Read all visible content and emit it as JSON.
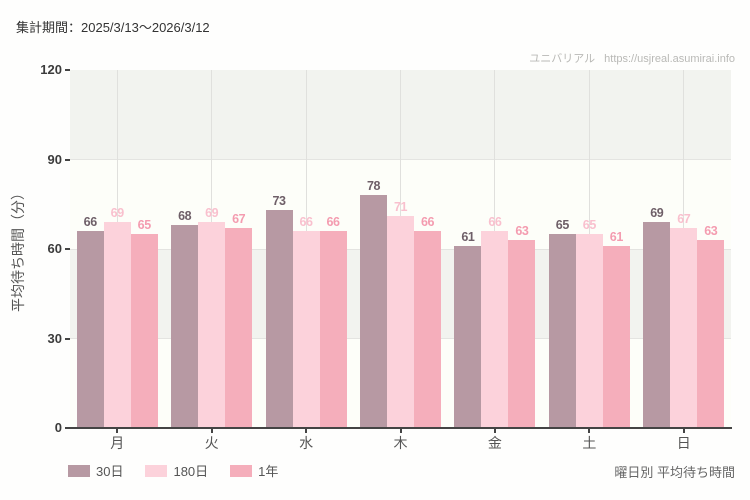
{
  "header": {
    "period_label": "集計期間：2025/3/13〜2026/3/12"
  },
  "watermark": {
    "brand": "ユニバリアル",
    "url": "https://usjreal.asumirai.info"
  },
  "chart_data": {
    "type": "bar",
    "title": "曜日別 平均待ち時間",
    "categories": [
      "月",
      "火",
      "水",
      "木",
      "金",
      "土",
      "日"
    ],
    "series": [
      {
        "name": "30日",
        "color": "#b799a3",
        "label_color": "#6e5f68",
        "values": [
          66,
          68,
          73,
          78,
          61,
          65,
          69
        ]
      },
      {
        "name": "180日",
        "color": "#fcd2db",
        "label_color": "#f9c0ce",
        "values": [
          69,
          69,
          66,
          71,
          66,
          65,
          67
        ]
      },
      {
        "name": "1年",
        "color": "#f5aebb",
        "label_color": "#f49cb0",
        "values": [
          65,
          67,
          66,
          66,
          63,
          61,
          63
        ]
      }
    ],
    "xlabel": "",
    "ylabel": "平均待ち時間（分）",
    "ylim": [
      0,
      120
    ],
    "yticks": [
      0,
      30,
      60,
      90,
      120
    ],
    "grid": true,
    "band_colors": [
      "#fdfef9",
      "#f2f3ef"
    ],
    "legend_position": "bottom-left"
  },
  "footer": {
    "caption": "曜日別 平均待ち時間"
  }
}
